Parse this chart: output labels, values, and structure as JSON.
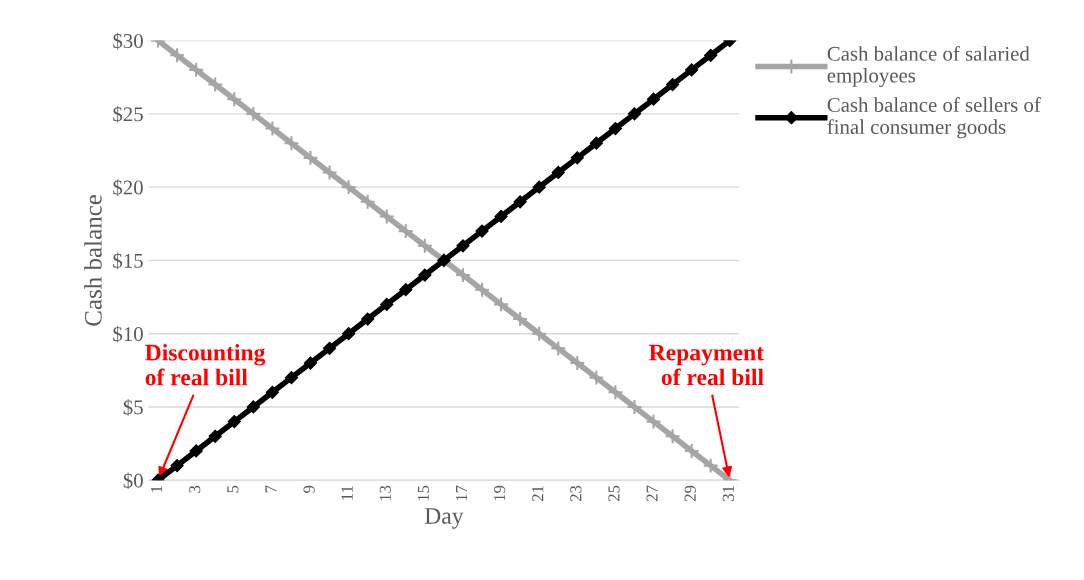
{
  "chart_data": {
    "type": "line",
    "xlabel": "Day",
    "ylabel": "Cash balance",
    "categories": [
      "1",
      null,
      "3",
      null,
      "5",
      null,
      "7",
      null,
      "9",
      null,
      "11",
      null,
      "13",
      null,
      "15",
      null,
      "17",
      null,
      "19",
      null,
      "21",
      null,
      "23",
      null,
      "25",
      null,
      "27",
      null,
      "29",
      null,
      "31"
    ],
    "series": [
      {
        "name": "Cash balance of salaried employees",
        "color": "#a5a5a5",
        "marker": "cross",
        "values": [
          30,
          29,
          28,
          27,
          26,
          25,
          24,
          23,
          22,
          21,
          20,
          19,
          18,
          17,
          16,
          15,
          14,
          13,
          12,
          11,
          10,
          9,
          8,
          7,
          6,
          5,
          4,
          3,
          2,
          1,
          0
        ]
      },
      {
        "name": "Cash balance of sellers of final consumer goods",
        "color": "#000000",
        "marker": "diamond",
        "values": [
          0,
          1,
          2,
          3,
          4,
          5,
          6,
          7,
          8,
          9,
          10,
          11,
          12,
          13,
          14,
          15,
          16,
          17,
          18,
          19,
          20,
          21,
          22,
          23,
          24,
          25,
          26,
          27,
          28,
          29,
          30
        ]
      }
    ],
    "ylim": [
      0,
      30
    ],
    "yticks": [
      {
        "value": 0,
        "label": "$0"
      },
      {
        "value": 5,
        "label": "$5"
      },
      {
        "value": 10,
        "label": "$10"
      },
      {
        "value": 15,
        "label": "$15"
      },
      {
        "value": 20,
        "label": "$20"
      },
      {
        "value": 25,
        "label": "$25"
      },
      {
        "value": 30,
        "label": "$30"
      }
    ],
    "grid": "y",
    "legend": "top right",
    "line_style": "solid",
    "annotations": [
      {
        "text": "Discounting\nof real bill",
        "x": "1",
        "y": 0
      },
      {
        "text": "Repayment\nof real bill",
        "x": "31",
        "y": 0
      }
    ]
  }
}
